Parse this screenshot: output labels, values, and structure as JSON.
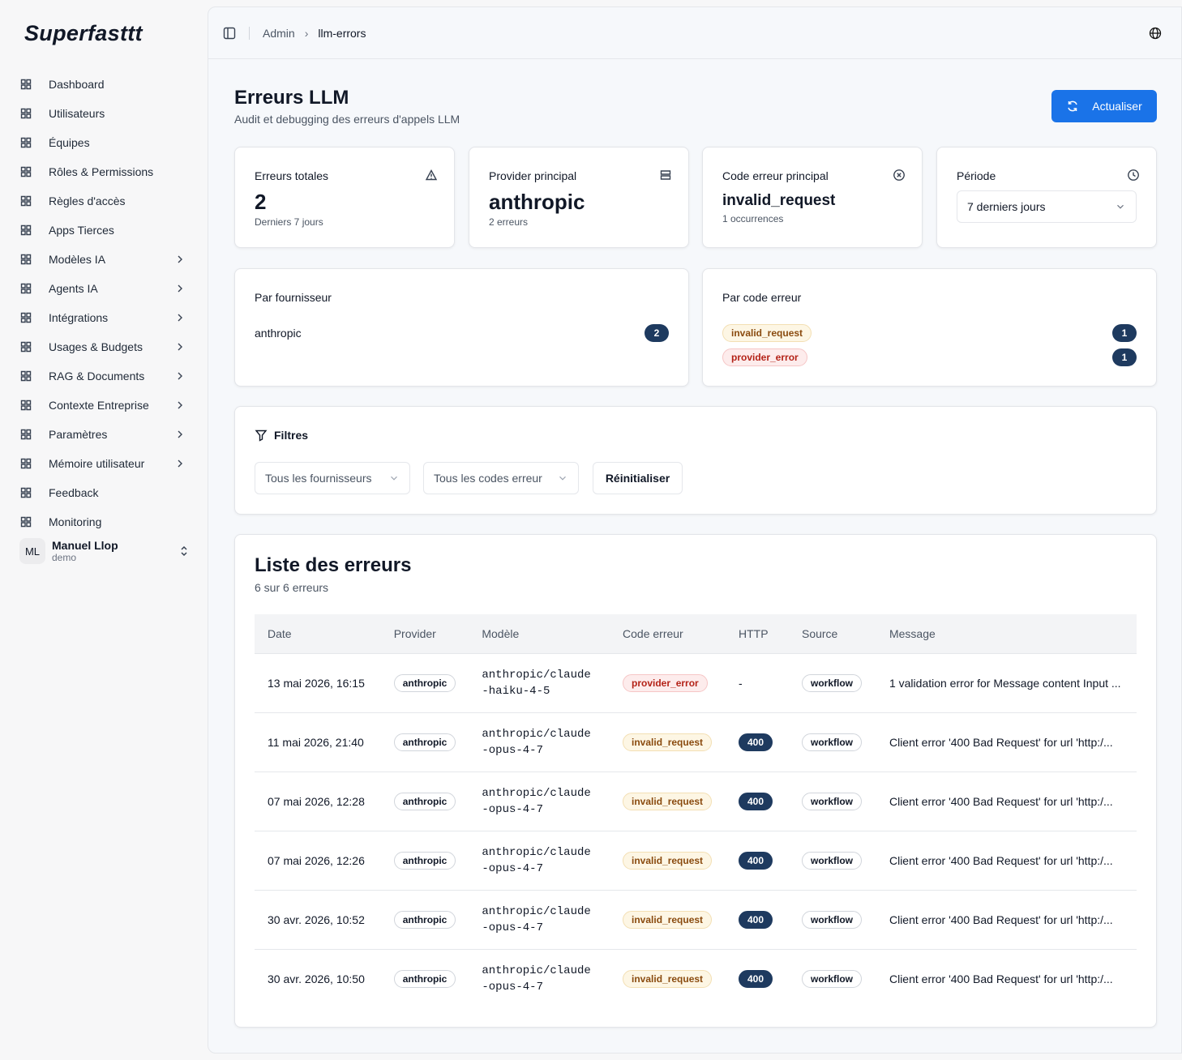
{
  "brand": "Superfasttt",
  "nav": [
    {
      "label": "Dashboard",
      "submenu": false
    },
    {
      "label": "Utilisateurs",
      "submenu": false
    },
    {
      "label": "Équipes",
      "submenu": false
    },
    {
      "label": "Rôles & Permissions",
      "submenu": false
    },
    {
      "label": "Règles d'accès",
      "submenu": false
    },
    {
      "label": "Apps Tierces",
      "submenu": false
    },
    {
      "label": "Modèles IA",
      "submenu": true
    },
    {
      "label": "Agents IA",
      "submenu": true
    },
    {
      "label": "Intégrations",
      "submenu": true
    },
    {
      "label": "Usages & Budgets",
      "submenu": true
    },
    {
      "label": "RAG & Documents",
      "submenu": true
    },
    {
      "label": "Contexte Entreprise",
      "submenu": true
    },
    {
      "label": "Paramètres",
      "submenu": true
    },
    {
      "label": "Mémoire utilisateur",
      "submenu": true
    },
    {
      "label": "Feedback",
      "submenu": false
    },
    {
      "label": "Monitoring",
      "submenu": false
    }
  ],
  "user": {
    "initials": "ML",
    "name": "Manuel Llop",
    "role": "demo"
  },
  "breadcrumb": [
    "Admin",
    "llm-errors"
  ],
  "header": {
    "title": "Erreurs LLM",
    "subtitle": "Audit et debugging des erreurs d'appels LLM",
    "button": "Actualiser"
  },
  "stats": [
    {
      "label": "Erreurs totales",
      "value": 2,
      "note": "Derniers 7 jours"
    },
    {
      "label": "Provider principal",
      "value": "anthropic",
      "note": "2 erreurs"
    },
    {
      "label": "Code erreur principal",
      "value": "invalid_request",
      "note": "1 occurrences"
    }
  ],
  "period": {
    "label": "Période",
    "selected": "7 derniers jours"
  },
  "by_provider": {
    "title": "Par fournisseur",
    "items": [
      {
        "name": "anthropic",
        "count": 2
      }
    ]
  },
  "by_code": {
    "title": "Par code erreur",
    "items": [
      {
        "name": "invalid_request",
        "count": 1,
        "color": "#8a4b0f",
        "background": "#fdf6e4",
        "border": "#f3dfb3"
      },
      {
        "name": "provider_error",
        "count": 1,
        "color": "#b42318",
        "background": "#fdecec",
        "border": "#f6c6c6"
      }
    ]
  },
  "filters": {
    "title": "Filtres",
    "selects": [
      "Tous les fournisseurs",
      "Tous les codes erreur"
    ],
    "reset": "Réinitialiser"
  },
  "list": {
    "title": "Liste des erreurs",
    "summary": "6 sur 6 erreurs",
    "columns": [
      "Date",
      "Provider",
      "Modèle",
      "Code erreur",
      "HTTP",
      "Source",
      "Message"
    ],
    "rows": [
      [
        "13 mai 2026, 16:15",
        "anthropic",
        "anthropic/claude-haiku-4-5",
        "provider_error",
        "-",
        "workflow",
        "1 validation error for Message content Input ..."
      ],
      [
        "11 mai 2026, 21:40",
        "anthropic",
        "anthropic/claude-opus-4-7",
        "invalid_request",
        400,
        "workflow",
        "Client error '400 Bad Request' for url 'http:/..."
      ],
      [
        "07 mai 2026, 12:28",
        "anthropic",
        "anthropic/claude-opus-4-7",
        "invalid_request",
        400,
        "workflow",
        "Client error '400 Bad Request' for url 'http:/..."
      ],
      [
        "07 mai 2026, 12:26",
        "anthropic",
        "anthropic/claude-opus-4-7",
        "invalid_request",
        400,
        "workflow",
        "Client error '400 Bad Request' for url 'http:/..."
      ],
      [
        "30 avr. 2026, 10:52",
        "anthropic",
        "anthropic/claude-opus-4-7",
        "invalid_request",
        400,
        "workflow",
        "Client error '400 Bad Request' for url 'http:/..."
      ],
      [
        "30 avr. 2026, 10:50",
        "anthropic",
        "anthropic/claude-opus-4-7",
        "invalid_request",
        400,
        "workflow",
        "Client error '400 Bad Request' for url 'http:/..."
      ]
    ]
  }
}
